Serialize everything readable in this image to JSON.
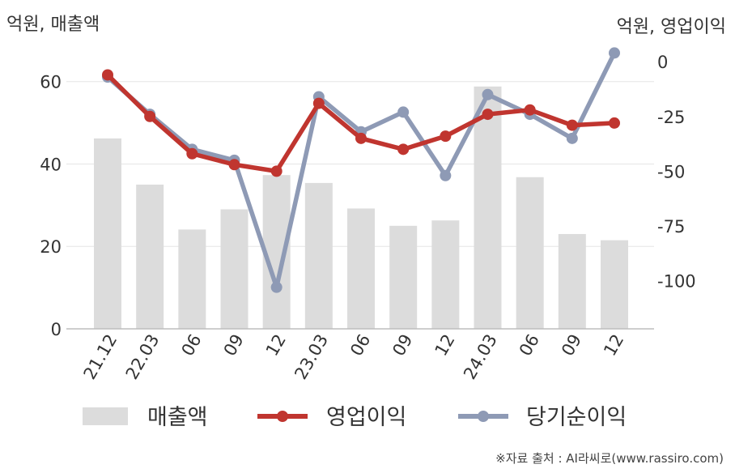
{
  "chart_data": {
    "type": "bar+line",
    "left_unit_label": "억원, 매출액",
    "right_unit_label": "억원, 영업이익",
    "categories": [
      "21.12",
      "22.03",
      "06",
      "09",
      "12",
      "23.03",
      "06",
      "09",
      "12",
      "24.03",
      "06",
      "09",
      "12"
    ],
    "left_axis": {
      "ylim": [
        0,
        68
      ],
      "ticks": [
        0,
        20,
        40,
        60
      ]
    },
    "right_axis": {
      "ylim": [
        -122,
        6
      ],
      "ticks": [
        0,
        -25,
        -50,
        -75,
        -100
      ]
    },
    "series": [
      {
        "name": "매출액",
        "type": "bar",
        "axis": "left",
        "color": "#dcdcdc",
        "values": [
          46.2,
          35.0,
          24.1,
          29.0,
          37.3,
          35.4,
          29.2,
          25.0,
          26.3,
          58.8,
          36.8,
          23.0,
          21.5
        ]
      },
      {
        "name": "영업이익",
        "type": "line",
        "axis": "right",
        "color": "#c0352f",
        "values": [
          -6,
          -25,
          -42,
          -47,
          -50,
          -19,
          -35,
          -40,
          -34,
          -24,
          -22,
          -29,
          -28
        ]
      },
      {
        "name": "당기순이익",
        "type": "line",
        "axis": "right",
        "color": "#8e9ab5",
        "values": [
          -7,
          -24,
          -40,
          -45,
          -103,
          -16,
          -32,
          -23,
          -52,
          -15,
          -24,
          -35,
          4
        ]
      }
    ],
    "grid": true,
    "legend_position": "bottom"
  },
  "source": "※자료 출처 : AI라씨로(www.rassiro.com)"
}
